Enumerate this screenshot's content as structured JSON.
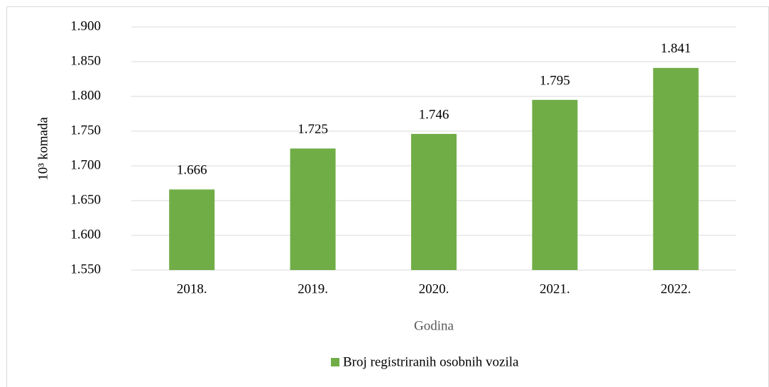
{
  "chart_data": {
    "type": "bar",
    "y_label": "10³ komada",
    "x_label": "Godina",
    "categories": [
      "2018.",
      "2019.",
      "2020.",
      "2021.",
      "2022."
    ],
    "series": [
      {
        "name": "Broj registriranih osobnih vozila",
        "color": "#70ad47",
        "values": [
          1666,
          1725,
          1746,
          1795,
          1841
        ],
        "value_labels": [
          "1.666",
          "1.725",
          "1.746",
          "1.795",
          "1.841"
        ]
      }
    ],
    "ylim": [
      1550,
      1900
    ],
    "yticks": [
      {
        "value": 1550,
        "label": "1.550"
      },
      {
        "value": 1600,
        "label": "1.600"
      },
      {
        "value": 1650,
        "label": "1.650"
      },
      {
        "value": 1700,
        "label": "1.700"
      },
      {
        "value": 1750,
        "label": "1.750"
      },
      {
        "value": 1800,
        "label": "1.800"
      },
      {
        "value": 1850,
        "label": "1.850"
      },
      {
        "value": 1900,
        "label": "1.900"
      }
    ],
    "grid": true,
    "legend": "bottom"
  }
}
